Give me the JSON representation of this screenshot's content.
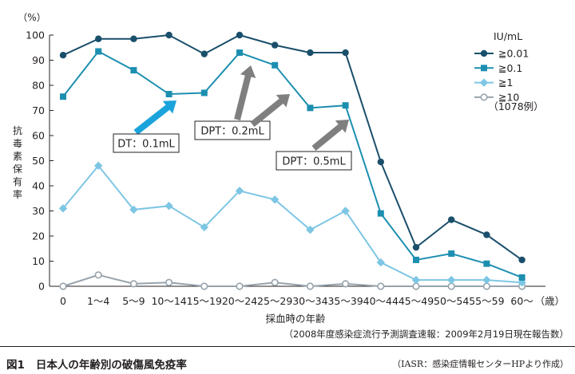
{
  "chart_data": {
    "type": "line",
    "ylabel": "抗毒素保有率",
    "yunit": "（%）",
    "xlabel": "採血時の年齢",
    "xunit": "（歳）",
    "ylim": [
      0,
      100
    ],
    "yticks": [
      0,
      10,
      20,
      30,
      40,
      50,
      60,
      70,
      80,
      90,
      100
    ],
    "categories": [
      "0",
      "1～4",
      "5～9",
      "10～14",
      "15～19",
      "20～24",
      "25～29",
      "30～34",
      "35～39",
      "40～44",
      "45～49",
      "50～54",
      "55～59",
      "60～"
    ],
    "series": [
      {
        "name": "≧0.01",
        "color": "#1a4f6b",
        "marker": "circle",
        "values": [
          92,
          98.5,
          98.5,
          100,
          92.5,
          100,
          96,
          93,
          93,
          49.5,
          15.5,
          26.5,
          20.5,
          10.5
        ]
      },
      {
        "name": "≧0.1",
        "color": "#1c8fb0",
        "marker": "square",
        "values": [
          75.5,
          93.5,
          86,
          76.5,
          77,
          93,
          88,
          71,
          72,
          29,
          10.5,
          13,
          9,
          3.5
        ]
      },
      {
        "name": "≧1",
        "color": "#7dc6e4",
        "marker": "diamond",
        "values": [
          31,
          48,
          30.5,
          32,
          23.5,
          38,
          34.5,
          22.5,
          30,
          9.5,
          2.5,
          2.5,
          2.5,
          1.5
        ]
      },
      {
        "name": "≧10",
        "color": "#97a3ac",
        "marker": "open-circle",
        "values": [
          0,
          4.5,
          1,
          1.5,
          0,
          0,
          1.5,
          0,
          1,
          0,
          0,
          0,
          0,
          0
        ]
      }
    ],
    "legend": {
      "title": "IU/mL",
      "placement": "top-right",
      "note": "（1078例）"
    },
    "annotations": [
      {
        "label": "DT：0.1mL",
        "color": "#1ba3dc"
      },
      {
        "label": "DPT：0.2mL",
        "color": "#7f7f7f"
      },
      {
        "label": "DPT：0.5mL",
        "color": "#7f7f7f"
      }
    ]
  },
  "source_note": "（2008年度感染症流行予測調査速報：2009年2月19日現在報告数）",
  "figure": {
    "number": "図1",
    "title": "日本人の年齢別の破傷風免疫率",
    "credit": "（IASR：感染症情報センターHPより作成）"
  }
}
